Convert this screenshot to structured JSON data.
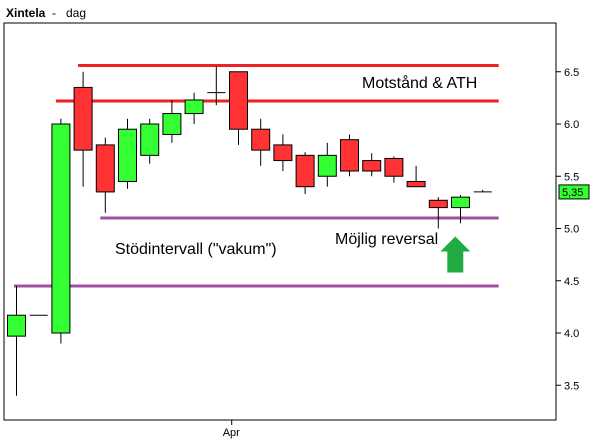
{
  "chart_data": {
    "type": "candlestick",
    "title": "Xintela",
    "subtitle": "dag",
    "title_separator": "-",
    "x_tick_labels": [
      {
        "index": 11,
        "label": "Apr"
      }
    ],
    "y_ticks": [
      3.5,
      4.0,
      4.5,
      5.0,
      5.5,
      6.0,
      6.5
    ],
    "ylim": [
      3.2,
      6.85
    ],
    "last_price": 5.35,
    "last_price_label": "5,35",
    "grid": false,
    "colors": {
      "up": "#33ff33",
      "down": "#ff3333",
      "flat": "#000000",
      "resistance": "#ee2222",
      "support": "#a050a0",
      "arrow": "#22aa44",
      "frame": "#000000",
      "last_price_box": "#33ff33"
    },
    "candles": [
      {
        "o": 3.97,
        "h": 4.45,
        "l": 3.4,
        "c": 4.17
      },
      {
        "o": 4.17,
        "h": 4.17,
        "l": 4.17,
        "c": 4.17
      },
      {
        "o": 4.0,
        "h": 6.05,
        "l": 3.9,
        "c": 6.0
      },
      {
        "o": 6.35,
        "h": 6.5,
        "l": 5.4,
        "c": 5.75
      },
      {
        "o": 5.8,
        "h": 5.87,
        "l": 5.15,
        "c": 5.35
      },
      {
        "o": 5.45,
        "h": 6.05,
        "l": 5.38,
        "c": 5.95
      },
      {
        "o": 5.7,
        "h": 6.05,
        "l": 5.62,
        "c": 6.0
      },
      {
        "o": 5.9,
        "h": 6.23,
        "l": 5.82,
        "c": 6.1
      },
      {
        "o": 6.1,
        "h": 6.3,
        "l": 6.0,
        "c": 6.23
      },
      {
        "o": 6.3,
        "h": 6.55,
        "l": 6.18,
        "c": 6.3
      },
      {
        "o": 6.5,
        "h": 6.5,
        "l": 5.8,
        "c": 5.95
      },
      {
        "o": 5.95,
        "h": 6.05,
        "l": 5.6,
        "c": 5.75
      },
      {
        "o": 5.8,
        "h": 5.9,
        "l": 5.55,
        "c": 5.65
      },
      {
        "o": 5.7,
        "h": 5.73,
        "l": 5.33,
        "c": 5.4
      },
      {
        "o": 5.5,
        "h": 5.82,
        "l": 5.4,
        "c": 5.7
      },
      {
        "o": 5.85,
        "h": 5.9,
        "l": 5.5,
        "c": 5.55
      },
      {
        "o": 5.65,
        "h": 5.72,
        "l": 5.5,
        "c": 5.55
      },
      {
        "o": 5.67,
        "h": 5.69,
        "l": 5.44,
        "c": 5.5
      },
      {
        "o": 5.45,
        "h": 5.6,
        "l": 5.4,
        "c": 5.4
      },
      {
        "o": 5.27,
        "h": 5.3,
        "l": 5.0,
        "c": 5.2
      },
      {
        "o": 5.2,
        "h": 5.32,
        "l": 5.05,
        "c": 5.3
      },
      {
        "o": 5.35,
        "h": 5.37,
        "l": 5.35,
        "c": 5.35
      }
    ],
    "levels": [
      {
        "id": "resistance-line-upper",
        "kind": "resistance",
        "value": 6.56,
        "from_index": 3,
        "to_index": 21
      },
      {
        "id": "resistance-line-lower",
        "kind": "resistance",
        "value": 6.22,
        "from_index": 2,
        "to_index": 21
      },
      {
        "id": "support-line-upper",
        "kind": "support",
        "value": 5.1,
        "from_index": 4,
        "to_index": 21
      },
      {
        "id": "support-line-lower",
        "kind": "support",
        "value": 4.45,
        "from_index": 0,
        "to_index": 21
      }
    ],
    "annotations": [
      {
        "id": "annotation-resistance",
        "text": "Motstånd & ATH"
      },
      {
        "id": "annotation-support",
        "text": "Stödintervall (\"vakum\")"
      },
      {
        "id": "annotation-reversal",
        "text": "Möjlig reversal"
      }
    ],
    "arrow_at_index": 19
  }
}
